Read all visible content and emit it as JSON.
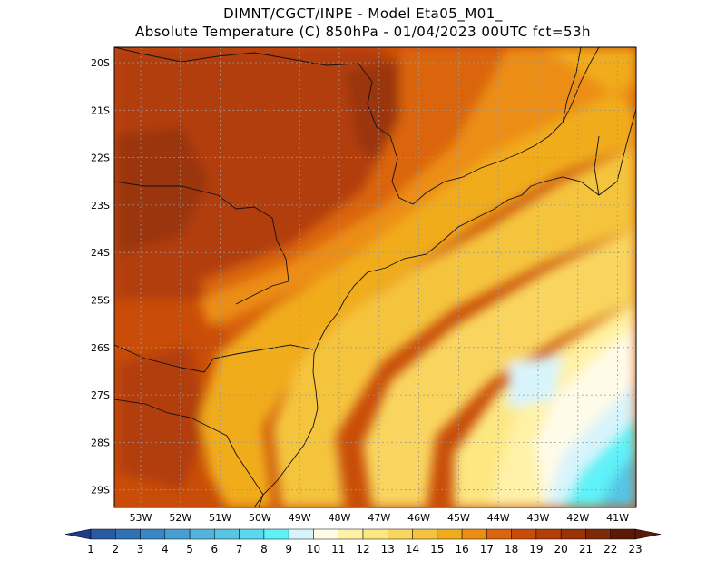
{
  "title": {
    "line1": "DIMNT/CGCT/INPE -  Model Eta05_M01_",
    "line2": "Absolute Temperature (C) 850hPa -  01/04/2023 00UTC fct=53h"
  },
  "map": {
    "latitude_labels": [
      "20S",
      "21S",
      "22S",
      "23S",
      "24S",
      "25S",
      "26S",
      "27S",
      "28S",
      "29S"
    ],
    "longitude_labels": [
      "53W",
      "52W",
      "51W",
      "50W",
      "49W",
      "48W",
      "47W",
      "46W",
      "45W",
      "44W",
      "43W",
      "42W",
      "41W"
    ]
  },
  "colorbar": {
    "labels": [
      "1",
      "2",
      "3",
      "4",
      "5",
      "6",
      "7",
      "8",
      "9",
      "10",
      "11",
      "12",
      "13",
      "14",
      "15",
      "16",
      "17",
      "18",
      "19",
      "20",
      "21",
      "22",
      "23"
    ],
    "colors": [
      "#1f3c8c",
      "#2a5aa3",
      "#3170b3",
      "#3a85c3",
      "#4a9fd2",
      "#52b4dc",
      "#57c6e4",
      "#5ad8ee",
      "#5ff2f8",
      "#d8f4fb",
      "#fffbe8",
      "#fff2a8",
      "#fde781",
      "#f9d55e",
      "#f5c43e",
      "#f1ac1c",
      "#ec8e12",
      "#db650c",
      "#c94d08",
      "#b23e08",
      "#9a3408",
      "#7e2a08",
      "#5c1a06"
    ]
  }
}
